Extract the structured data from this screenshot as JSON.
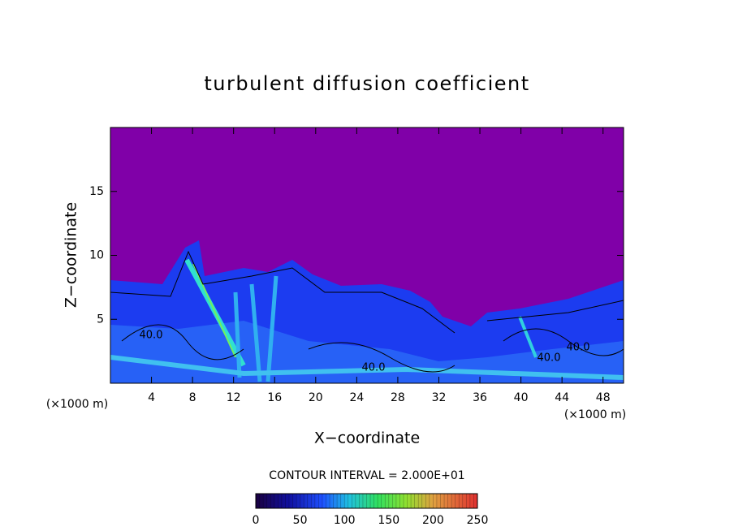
{
  "chart_data": {
    "type": "contour",
    "title": "turbulent diffusion coefficient",
    "xlabel": "X−coordinate",
    "ylabel": "Z−coordinate",
    "x_unit": "(×1000 m)",
    "y_unit": "(×1000 m)",
    "xlim": [
      0,
      50
    ],
    "xticks": [
      4,
      8,
      12,
      16,
      20,
      24,
      28,
      32,
      36,
      40,
      44,
      48
    ],
    "ylim": [
      0,
      20
    ],
    "yticks": [
      5,
      10,
      15
    ],
    "contour_interval": "CONTOUR INTERVAL = 2.000E+01",
    "contour_labels": [
      "40.0",
      "40.0",
      "40.0",
      "40.0"
    ],
    "colorbar": {
      "lim": [
        0,
        250
      ],
      "ticks": [
        0,
        50,
        100,
        150,
        200,
        250
      ]
    }
  }
}
